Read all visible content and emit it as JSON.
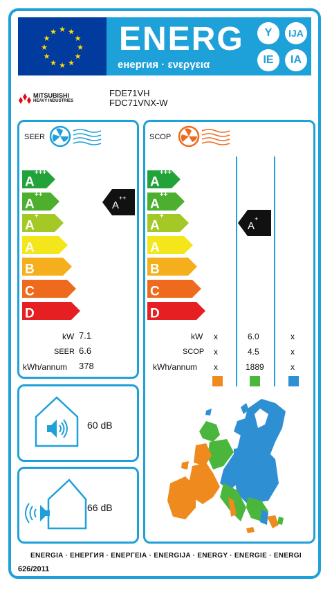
{
  "header": {
    "title": "ENERG",
    "subtitle": "енергия · ενεργεια",
    "circles": [
      "Y",
      "IJA",
      "IE",
      "IA"
    ],
    "colors": {
      "blue": "#1ea0d8",
      "eu_blue": "#003b9d",
      "star": "#ffdd00"
    }
  },
  "brand": {
    "line1": "MITSUBISHI",
    "line2": "HEAVY INDUSTRIES"
  },
  "models": {
    "indoor": "FDE71VH",
    "outdoor": "FDC71VNX-W"
  },
  "scales": {
    "classes": [
      {
        "letter": "A",
        "plus": "+++",
        "color": "#22a33a"
      },
      {
        "letter": "A",
        "plus": "++",
        "color": "#4caf2e"
      },
      {
        "letter": "A",
        "plus": "+",
        "color": "#a4c826"
      },
      {
        "letter": "A",
        "plus": "",
        "color": "#f3e61b"
      },
      {
        "letter": "B",
        "plus": "",
        "color": "#f5ae1c"
      },
      {
        "letter": "C",
        "plus": "",
        "color": "#ee6b1e"
      },
      {
        "letter": "D",
        "plus": "",
        "color": "#e51f22"
      }
    ]
  },
  "seer": {
    "label": "SEER",
    "icon": "fan-cooling-icon",
    "class_letter": "A",
    "class_plus": "++",
    "rows": [
      {
        "label": "kW",
        "value": "7.1"
      },
      {
        "label": "SEER",
        "value": "6.6"
      },
      {
        "label": "kWh/annum",
        "value": "378"
      }
    ]
  },
  "scop": {
    "label": "SCOP",
    "icon": "fan-heating-icon",
    "class_letter": "A",
    "class_plus": "+",
    "rows": [
      {
        "label": "kW",
        "cols": [
          "x",
          "6.0",
          "x"
        ]
      },
      {
        "label": "SCOP",
        "cols": [
          "x",
          "4.5",
          "x"
        ]
      },
      {
        "label": "kWh/annum",
        "cols": [
          "x",
          "1889",
          "x"
        ]
      }
    ],
    "zone_colors": [
      "#ef8a1e",
      "#4ab63c",
      "#2f8fd3"
    ]
  },
  "noise": {
    "indoor": {
      "value": "60 dB",
      "icon": "indoor-speaker-icon"
    },
    "outdoor": {
      "value": "66 dB",
      "icon": "outdoor-speaker-icon"
    }
  },
  "footer": {
    "languages": "ENERGIA · ЕНЕРГИЯ · ΕΝΕΡΓΕΙΑ · ENERGIJA · ENERGY · ENERGIE · ENERGI",
    "regulation": "626/2011"
  }
}
